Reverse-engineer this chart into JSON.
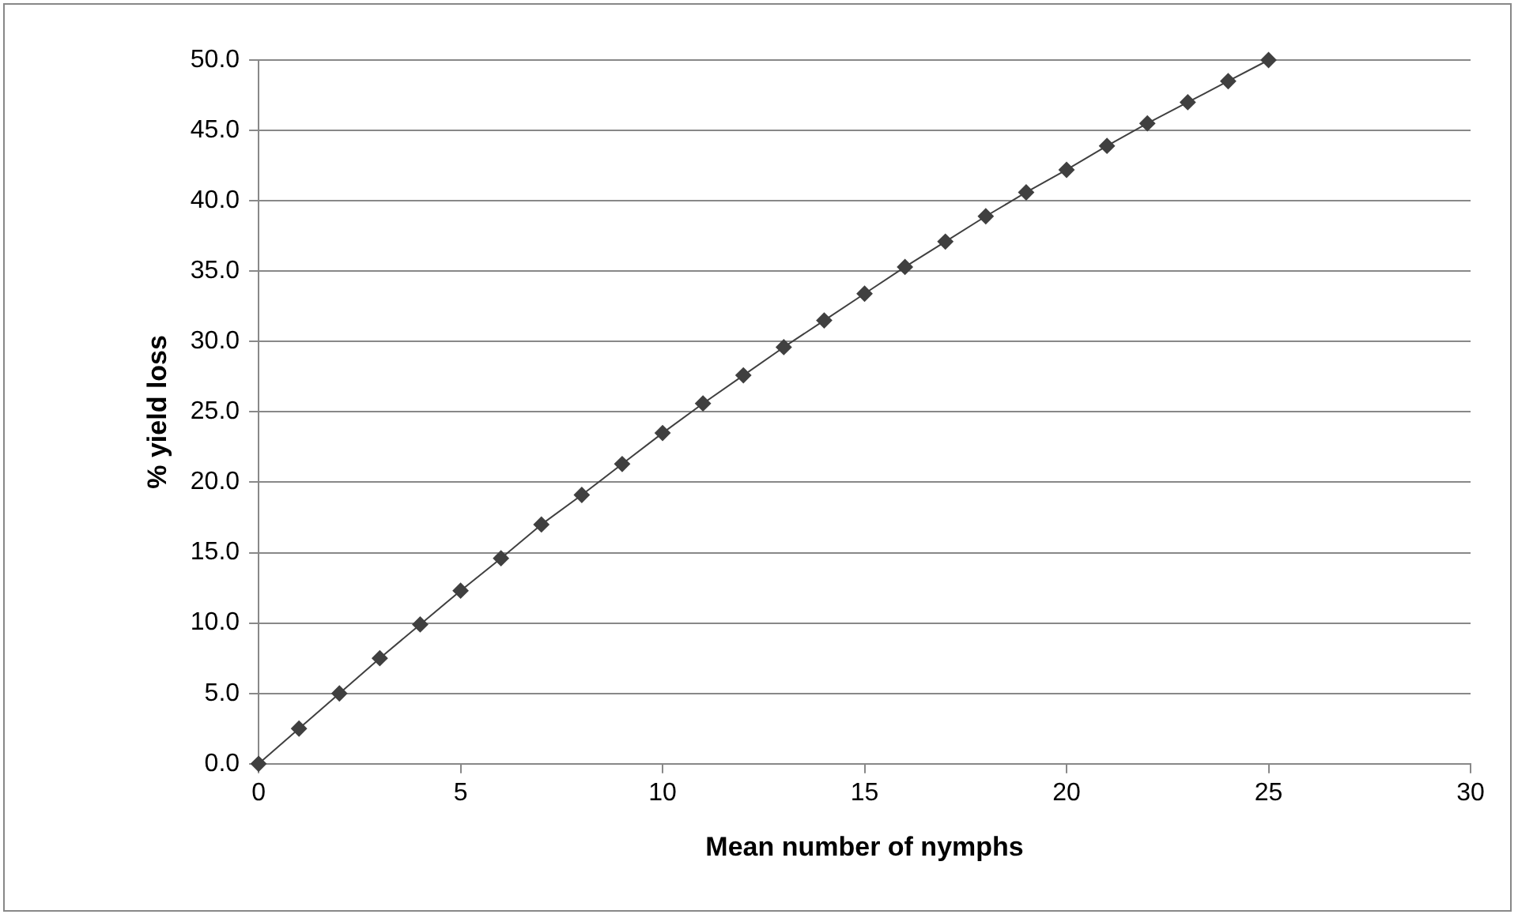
{
  "chart_data": {
    "type": "line",
    "xlabel": "Mean number of nymphs",
    "ylabel": "% yield loss",
    "x": [
      0,
      1,
      2,
      3,
      4,
      5,
      6,
      7,
      8,
      9,
      10,
      11,
      12,
      13,
      14,
      15,
      16,
      17,
      18,
      19,
      20,
      21,
      22,
      23,
      24,
      25
    ],
    "series": [
      {
        "color": "#404040",
        "values": [
          0,
          2.5,
          5.0,
          7.5,
          9.9,
          12.3,
          14.6,
          17.0,
          19.1,
          21.3,
          23.5,
          25.6,
          27.6,
          29.6,
          31.5,
          33.4,
          35.3,
          37.1,
          38.9,
          40.6,
          42.2,
          43.9,
          45.5,
          47.0,
          48.5,
          50.0
        ]
      }
    ],
    "xlim": [
      0,
      30
    ],
    "xticks": [
      0,
      5,
      10,
      15,
      20,
      25,
      30
    ],
    "ylim": [
      0,
      50
    ],
    "yticks": [
      {
        "value": 0,
        "label": "0.0"
      },
      {
        "value": 5,
        "label": "5.0"
      },
      {
        "value": 10,
        "label": "10.0"
      },
      {
        "value": 15,
        "label": "15.0"
      },
      {
        "value": 20,
        "label": "20.0"
      },
      {
        "value": 25,
        "label": "25.0"
      },
      {
        "value": 30,
        "label": "30.0"
      },
      {
        "value": 35,
        "label": "35.0"
      },
      {
        "value": 40,
        "label": "40.0"
      },
      {
        "value": 45,
        "label": "45.0"
      },
      {
        "value": 50,
        "label": "50.0"
      }
    ],
    "grid": "y",
    "legend": false,
    "marker": "diamond",
    "line_style": "solid"
  }
}
